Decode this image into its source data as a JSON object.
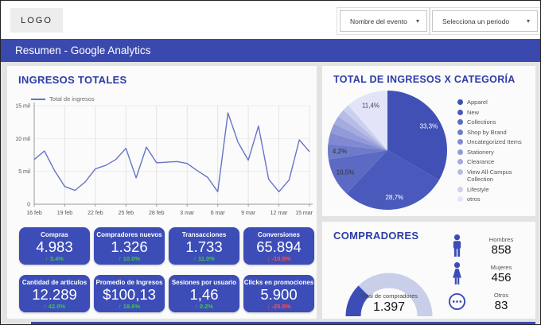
{
  "topbar": {
    "logo": "LOGO",
    "event_dropdown": "Nombre del evento",
    "period_dropdown": "Selecciona un periodo"
  },
  "header": {
    "title": "Resumen - Google Analytics"
  },
  "icons": {
    "arrow_up": "↑",
    "arrow_down": "↓",
    "chevron_down": "▾"
  },
  "colors": {
    "accent": "#3a49ad",
    "card": "#3c4db8",
    "title": "#2c3ca8",
    "delta_up": "#43c553",
    "delta_down": "#ff5252"
  },
  "kpis": [
    {
      "label": "Compras",
      "value": "4.983",
      "delta": "3.4%",
      "direction": "up"
    },
    {
      "label": "Compradores nuevos",
      "value": "1.326",
      "delta": "10.0%",
      "direction": "up"
    },
    {
      "label": "Transacciones",
      "value": "1.733",
      "delta": "11.0%",
      "direction": "up"
    },
    {
      "label": "Conversiones",
      "value": "65.894",
      "delta": "-10.5%",
      "direction": "down"
    },
    {
      "label": "Cantidad de artículos",
      "value": "12.289",
      "delta": "42.0%",
      "direction": "up"
    },
    {
      "label": "Promedio de Ingresos",
      "value": "$100,13",
      "delta": "18.6%",
      "direction": "up"
    },
    {
      "label": "Sesiones por usuario",
      "value": "1,46",
      "delta": "0.2%",
      "direction": "up"
    },
    {
      "label": "Clicks en promociones",
      "value": "5.900",
      "delta": "-25.5%",
      "direction": "down"
    }
  ],
  "compradores": {
    "title": "COMPRADORES",
    "groups": [
      {
        "icon": "male",
        "label": "Hombres",
        "value": "858"
      },
      {
        "icon": "female",
        "label": "Mujeres",
        "value": "456"
      },
      {
        "icon": "dots",
        "label": "Otros",
        "value": "83"
      }
    ]
  },
  "chart_data": [
    {
      "type": "line",
      "title": "INGRESOS TOTALES",
      "series": [
        {
          "name": "Total de ingresos",
          "values": [
            6800,
            8100,
            5100,
            2700,
            2100,
            3400,
            5400,
            5900,
            6800,
            8500,
            4000,
            8700,
            6300,
            6400,
            6500,
            6200,
            5100,
            4100,
            1900,
            13900,
            9400,
            6700,
            11900,
            3800,
            1900,
            3700,
            9800,
            8000
          ]
        }
      ],
      "x_tick_labels": [
        "16 feb",
        "19 feb",
        "22 feb",
        "25 feb",
        "28 feb",
        "3 mar",
        "6 mar",
        "9 mar",
        "12 mar",
        "15 mar"
      ],
      "x_tick_positions": [
        0,
        3,
        6,
        9,
        12,
        15,
        18,
        21,
        24,
        27
      ],
      "n_points": 28,
      "ylim": [
        0,
        15000
      ],
      "y_ticks": [
        {
          "value": 0,
          "label": "0"
        },
        {
          "value": 5000,
          "label": "5 mil"
        },
        {
          "value": 10000,
          "label": "10 mil"
        },
        {
          "value": 15000,
          "label": "15 mil"
        }
      ],
      "line_color": "#6673c7",
      "grid": true,
      "legend_position": "top-left"
    },
    {
      "type": "pie",
      "title": "TOTAL DE INGRESOS X CATEGORÍA",
      "labels": [
        "Apparel",
        "New",
        "Collections",
        "Shop by Brand",
        "Uncategorized Items",
        "Stationery",
        "Clearance",
        "View All-Campus Collection",
        "Lifestyle",
        "otros"
      ],
      "values": [
        33.3,
        28.7,
        10.5,
        4.2,
        3.0,
        2.6,
        2.3,
        2.1,
        1.9,
        11.4
      ],
      "value_labels": [
        "33,3%",
        "28,7%",
        "10,5%",
        "4,2%",
        "",
        "",
        "",
        "",
        "",
        "11,4%"
      ],
      "value_label_colors": [
        "#ffffff",
        "#ffffff",
        "#2f2f2f",
        "#2f2f2f",
        "",
        "",
        "",
        "",
        "",
        "#46464a"
      ],
      "colors": [
        "#4150b4",
        "#4a5abc",
        "#5c6ac3",
        "#6e7bca",
        "#8089d1",
        "#929ad8",
        "#a4abdf",
        "#b6bce6",
        "#ccd0ef",
        "#e2e5f8"
      ],
      "start_angle": "top",
      "direction": "clockwise",
      "legend_position": "right"
    },
    {
      "type": "donut-gauge",
      "label": "Total de compradores",
      "value": 1397,
      "display_value": "1.397",
      "fraction_filled": 0.25,
      "filled_color": "#3c4db8",
      "track_color": "#c9cfe9"
    }
  ]
}
